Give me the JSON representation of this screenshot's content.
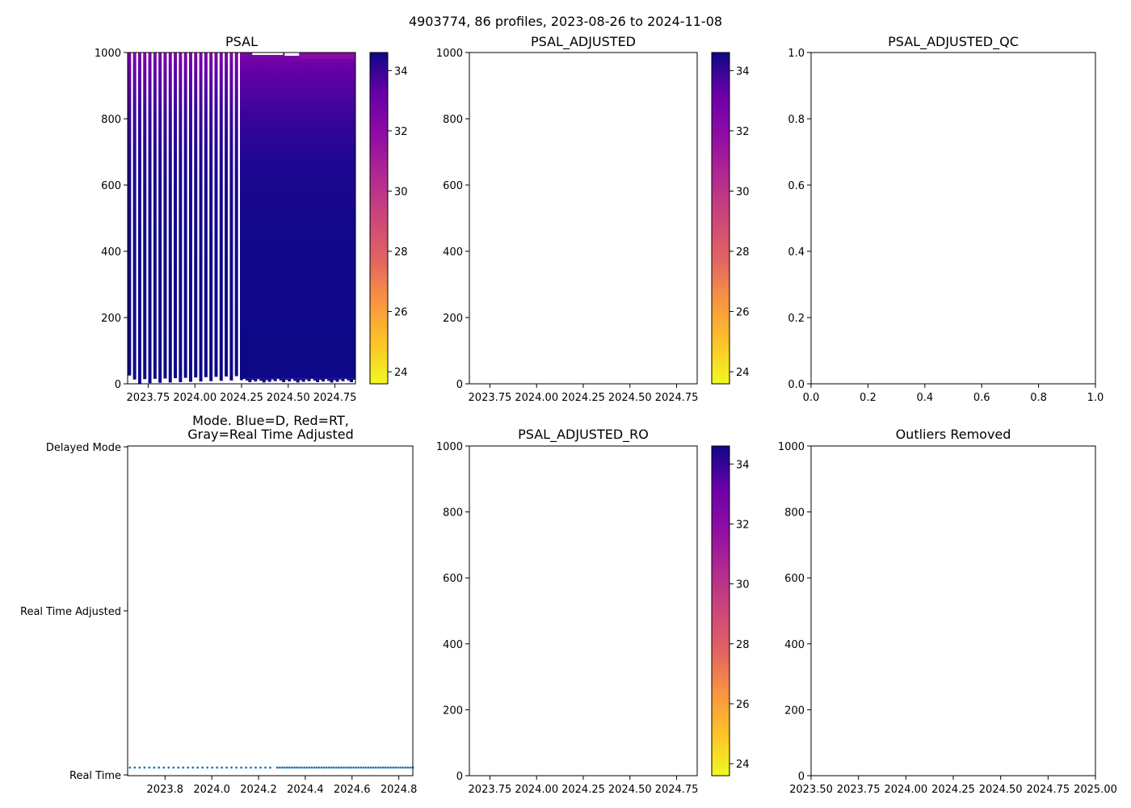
{
  "suptitle": "4903774, 86 profiles, 2023-08-26 to 2024-11-08",
  "colorbar": {
    "ticks": [
      "24",
      "26",
      "28",
      "30",
      "32",
      "34"
    ],
    "min": 23.6,
    "max": 34.6,
    "colormap": "plasma_r"
  },
  "chart_data": [
    {
      "id": "psal",
      "type": "heatmap",
      "title": "PSAL",
      "xlabel": "",
      "ylabel": "",
      "xlim": [
        2023.64,
        2024.86
      ],
      "ylim": [
        1000,
        0
      ],
      "xticks": [
        "2023.75",
        "2024.00",
        "2024.25",
        "2024.50",
        "2024.75"
      ],
      "yticks": [
        "0",
        "200",
        "400",
        "600",
        "800",
        "1000"
      ],
      "value_range": [
        23.6,
        34.6
      ],
      "description_values": {
        "surface_salinity": 32.6,
        "deep_salinity": 34.4,
        "profile_depth_max": 990,
        "sparse_profiles_until": 2024.25,
        "dense_profiles_from": 2024.26
      }
    },
    {
      "id": "psal-adjusted",
      "type": "heatmap",
      "title": "PSAL_ADJUSTED",
      "xlim": [
        2023.64,
        2024.86
      ],
      "ylim": [
        1000,
        0
      ],
      "xticks": [
        "2023.75",
        "2024.00",
        "2024.25",
        "2024.50",
        "2024.75"
      ],
      "yticks": [
        "0",
        "200",
        "400",
        "600",
        "800",
        "1000"
      ],
      "values": []
    },
    {
      "id": "psal-adjusted-qc",
      "type": "scatter",
      "title": "PSAL_ADJUSTED_QC",
      "xlim": [
        0.0,
        1.0
      ],
      "ylim": [
        0.0,
        1.0
      ],
      "xticks": [
        "0.0",
        "0.2",
        "0.4",
        "0.6",
        "0.8",
        "1.0"
      ],
      "yticks": [
        "0.0",
        "0.2",
        "0.4",
        "0.6",
        "0.8",
        "1.0"
      ],
      "values": []
    },
    {
      "id": "mode",
      "type": "scatter",
      "title_line1": "Mode. Blue=D, Red=RT,",
      "title_line2": "Gray=Real Time Adjusted",
      "xlim": [
        2023.64,
        2024.86
      ],
      "xticks": [
        "2023.8",
        "2024.0",
        "2024.2",
        "2024.4",
        "2024.6",
        "2024.8"
      ],
      "ycategories": [
        "Delayed Mode",
        "Real Time Adjusted",
        "Real Time"
      ],
      "series": [
        {
          "name": "Real Time",
          "level": 0,
          "color": "#1f77b4",
          "count": 86
        }
      ]
    },
    {
      "id": "psal-adjusted-ro",
      "type": "heatmap",
      "title": "PSAL_ADJUSTED_RO",
      "xlim": [
        2023.64,
        2024.86
      ],
      "ylim": [
        1000,
        0
      ],
      "xticks": [
        "2023.75",
        "2024.00",
        "2024.25",
        "2024.50",
        "2024.75"
      ],
      "yticks": [
        "0",
        "200",
        "400",
        "600",
        "800",
        "1000"
      ],
      "values": []
    },
    {
      "id": "outliers",
      "type": "scatter",
      "title": "Outliers Removed",
      "xlim": [
        2023.5,
        2025.0
      ],
      "ylim": [
        1000,
        0
      ],
      "xticks": [
        "2023.50",
        "2023.75",
        "2024.00",
        "2024.25",
        "2024.50",
        "2024.75",
        "2025.00"
      ],
      "yticks": [
        "0",
        "200",
        "400",
        "600",
        "800",
        "1000"
      ],
      "values": []
    }
  ]
}
